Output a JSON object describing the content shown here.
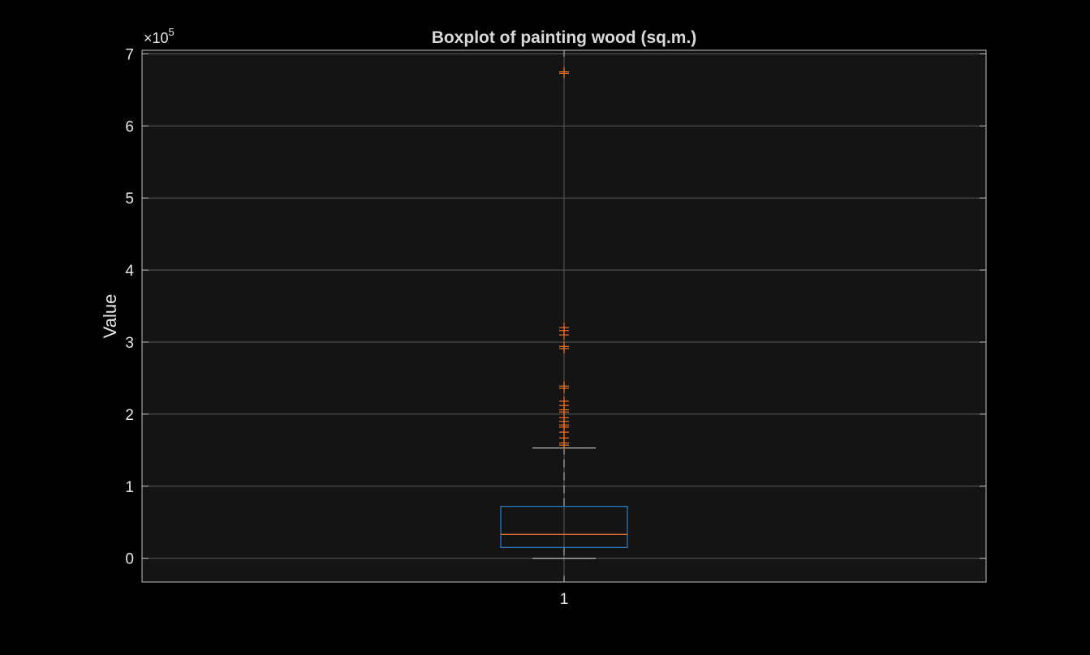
{
  "chart_data": {
    "type": "boxplot",
    "title": "Boxplot of painting wood (sq.m.)",
    "ylabel": "Value",
    "xlabel": "",
    "categories": [
      "1"
    ],
    "y_exponent": {
      "base": "×10",
      "power": "5"
    },
    "ylim": [
      -33000,
      705000
    ],
    "yticks": [
      0,
      100000,
      200000,
      300000,
      400000,
      500000,
      600000,
      700000
    ],
    "ytick_labels": [
      "0",
      "1",
      "2",
      "3",
      "4",
      "5",
      "6",
      "7"
    ],
    "grid": true,
    "box": {
      "whisker_low": 0,
      "q1": 15000,
      "median": 33000,
      "q3": 72000,
      "whisker_high": 153000,
      "outliers": [
        157000,
        160000,
        167000,
        175000,
        182000,
        185000,
        190000,
        195000,
        203000,
        206000,
        212000,
        218000,
        236000,
        239000,
        291000,
        294000,
        310000,
        316000,
        320000,
        673000,
        675000
      ]
    },
    "colors": {
      "box": "#2f7fc4",
      "median": "#e8732a",
      "outlier": "#e8732a",
      "whisker": "#cccccc",
      "axes_bg": "#141414",
      "figure_bg": "#000000",
      "grid": "#5a5a5a",
      "axis": "#bfbfbf"
    }
  }
}
